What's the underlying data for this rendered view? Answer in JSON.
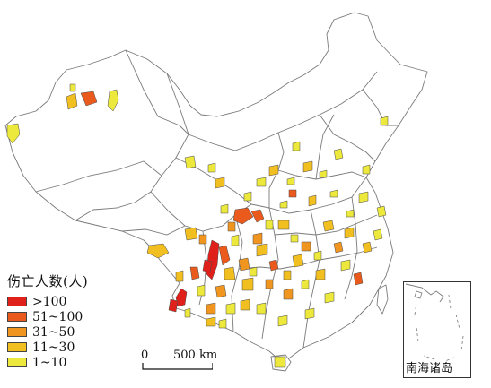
{
  "legend": {
    "title": "伤亡人数(人)",
    "items": [
      {
        "label": ">100",
        "color": "#e0211b"
      },
      {
        "label": "51~100",
        "color": "#ea5a1c"
      },
      {
        "label": "31~50",
        "color": "#f0951f"
      },
      {
        "label": "11~30",
        "color": "#f2bf20"
      },
      {
        "label": "1~10",
        "color": "#ece83c"
      }
    ]
  },
  "scale_bar": {
    "start_label": "0",
    "end_label": "500 km"
  },
  "inset": {
    "label": "南海诸岛"
  }
}
